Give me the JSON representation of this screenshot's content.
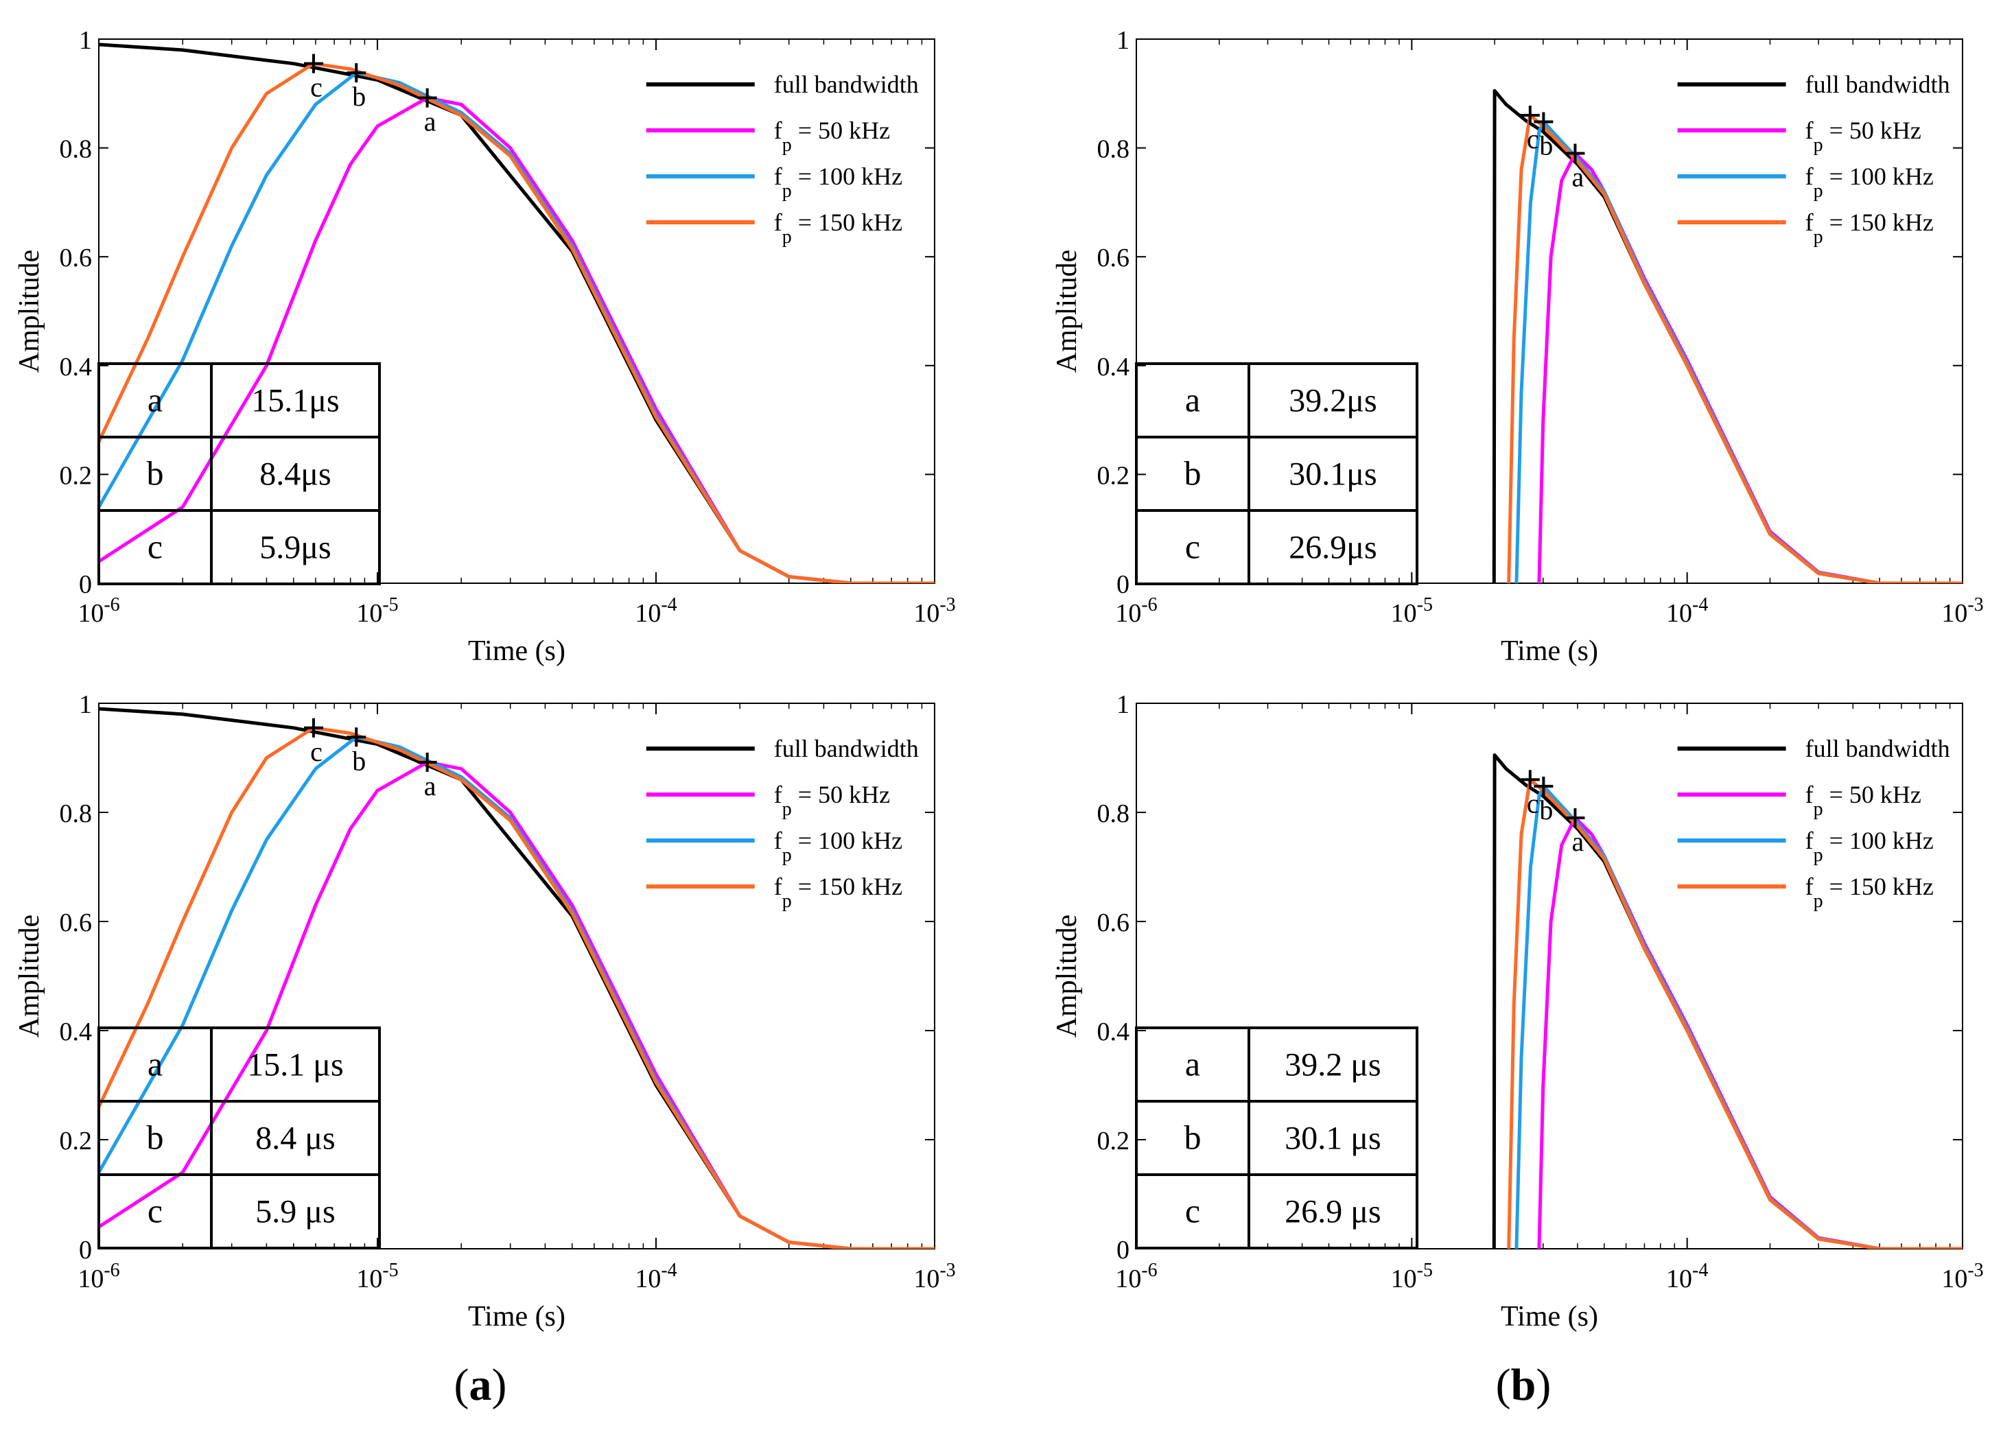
{
  "figure": {
    "panel_labels": [
      {
        "letter": "a"
      },
      {
        "letter": "b"
      }
    ],
    "legend_entries": [
      {
        "label": "full bandwidth",
        "color": "#000000"
      },
      {
        "base": "f",
        "sub": "p",
        "rest": " = 50 kHz",
        "color": "#ff00ff"
      },
      {
        "base": "f",
        "sub": "p",
        "rest": " = 100 kHz",
        "color": "#1f9eea"
      },
      {
        "base": "f",
        "sub": "p",
        "rest": " = 150 kHz",
        "color": "#ff6a26"
      }
    ],
    "y_ticks": [
      "0",
      "0.2",
      "0.4",
      "0.6",
      "0.8",
      "1"
    ],
    "x_tick_mantissa": "10",
    "x_tick_exponents": [
      "-6",
      "-5",
      "-4",
      "-3"
    ]
  },
  "chart_data": [
    {
      "id": "a-top",
      "type": "line",
      "title": "",
      "xlabel": "Time (s)",
      "ylabel": "Amplitude",
      "xscale": "log",
      "xlim": [
        1e-06,
        0.001
      ],
      "ylim": [
        0,
        1
      ],
      "legend_position": "top-right",
      "grid": false,
      "series": [
        {
          "name": "full bandwidth",
          "color": "#000000",
          "x": [
            1e-06,
            2e-06,
            5e-06,
            1e-05,
            2e-05,
            5e-05,
            0.0001,
            0.0002,
            0.0003,
            0.0005,
            0.001
          ],
          "y": [
            0.99,
            0.98,
            0.955,
            0.925,
            0.86,
            0.61,
            0.3,
            0.06,
            0.012,
            0,
            0
          ]
        },
        {
          "name": "f_p = 50 kHz",
          "color": "#ff00ff",
          "x": [
            1e-06,
            2e-06,
            4e-06,
            6e-06,
            8e-06,
            1e-05,
            1.51e-05,
            2e-05,
            3e-05,
            5e-05,
            0.0001,
            0.0002,
            0.0003,
            0.0005,
            0.001
          ],
          "y": [
            0.04,
            0.14,
            0.4,
            0.63,
            0.77,
            0.84,
            0.892,
            0.88,
            0.8,
            0.63,
            0.32,
            0.06,
            0.012,
            0,
            0
          ]
        },
        {
          "name": "f_p = 100 kHz",
          "color": "#1f9eea",
          "x": [
            1e-06,
            2e-06,
            3e-06,
            4e-06,
            6e-06,
            8.4e-06,
            1.2e-05,
            2e-05,
            3e-05,
            5e-05,
            0.0001,
            0.0002,
            0.0003,
            0.0005,
            0.001
          ],
          "y": [
            0.14,
            0.41,
            0.62,
            0.75,
            0.88,
            0.938,
            0.92,
            0.865,
            0.79,
            0.62,
            0.31,
            0.06,
            0.012,
            0,
            0
          ]
        },
        {
          "name": "f_p = 150 kHz",
          "color": "#ff6a26",
          "x": [
            1e-06,
            1.5e-06,
            2e-06,
            3e-06,
            4e-06,
            5.9e-06,
            8e-06,
            1.2e-05,
            2e-05,
            3e-05,
            5e-05,
            0.0001,
            0.0002,
            0.0003,
            0.0005,
            0.001
          ],
          "y": [
            0.26,
            0.45,
            0.6,
            0.8,
            0.9,
            0.955,
            0.945,
            0.915,
            0.86,
            0.785,
            0.615,
            0.305,
            0.06,
            0.012,
            0,
            0
          ]
        }
      ],
      "markers": [
        {
          "label": "a",
          "x": 1.51e-05,
          "y": 0.892
        },
        {
          "label": "b",
          "x": 8.4e-06,
          "y": 0.938
        },
        {
          "label": "c",
          "x": 5.9e-06,
          "y": 0.955
        }
      ],
      "table": [
        {
          "key": "a",
          "value": "15.1μs"
        },
        {
          "key": "b",
          "value": "8.4μs"
        },
        {
          "key": "c",
          "value": "5.9μs"
        }
      ]
    },
    {
      "id": "b-top",
      "type": "line",
      "title": "",
      "xlabel": "Time (s)",
      "ylabel": "Amplitude",
      "xscale": "log",
      "xlim": [
        1e-06,
        0.001
      ],
      "ylim": [
        0,
        1
      ],
      "legend_position": "top-right",
      "grid": false,
      "series": [
        {
          "name": "full bandwidth",
          "color": "#000000",
          "x": [
            1.99e-05,
            2e-05,
            2.2e-05,
            2.6e-05,
            3e-05,
            4e-05,
            5e-05,
            7e-05,
            0.0001,
            0.0002,
            0.0003,
            0.0005,
            0.001
          ],
          "y": [
            0,
            0.905,
            0.88,
            0.85,
            0.83,
            0.77,
            0.71,
            0.55,
            0.4,
            0.09,
            0.018,
            0,
            0
          ]
        },
        {
          "name": "f_p = 50 kHz",
          "color": "#ff00ff",
          "x": [
            2.9e-05,
            3e-05,
            3.2e-05,
            3.5e-05,
            3.92e-05,
            4.5e-05,
            5e-05,
            7e-05,
            0.0001,
            0.0002,
            0.0003,
            0.0005,
            0.001
          ],
          "y": [
            0,
            0.3,
            0.6,
            0.74,
            0.79,
            0.76,
            0.72,
            0.56,
            0.41,
            0.095,
            0.02,
            0,
            0
          ]
        },
        {
          "name": "f_p = 100 kHz",
          "color": "#1f9eea",
          "x": [
            2.4e-05,
            2.5e-05,
            2.7e-05,
            2.9e-05,
            3.01e-05,
            4e-05,
            5e-05,
            7e-05,
            0.0001,
            0.0002,
            0.0003,
            0.0005,
            0.001
          ],
          "y": [
            0,
            0.35,
            0.7,
            0.83,
            0.848,
            0.78,
            0.72,
            0.555,
            0.405,
            0.092,
            0.019,
            0,
            0
          ]
        },
        {
          "name": "f_p = 150 kHz",
          "color": "#ff6a26",
          "x": [
            2.25e-05,
            2.35e-05,
            2.5e-05,
            2.69e-05,
            3e-05,
            4e-05,
            5e-05,
            7e-05,
            0.0001,
            0.0002,
            0.0003,
            0.0005,
            0.001
          ],
          "y": [
            0,
            0.45,
            0.76,
            0.86,
            0.84,
            0.775,
            0.715,
            0.55,
            0.4,
            0.09,
            0.018,
            0,
            0
          ]
        }
      ],
      "markers": [
        {
          "label": "a",
          "x": 3.92e-05,
          "y": 0.79
        },
        {
          "label": "b",
          "x": 3.01e-05,
          "y": 0.848
        },
        {
          "label": "c",
          "x": 2.69e-05,
          "y": 0.86
        }
      ],
      "table": [
        {
          "key": "a",
          "value": "39.2μs"
        },
        {
          "key": "b",
          "value": "30.1μs"
        },
        {
          "key": "c",
          "value": "26.9μs"
        }
      ]
    },
    {
      "id": "a-bottom",
      "type": "line",
      "title": "",
      "xlabel": "Time (s)",
      "ylabel": "Amplitude",
      "xscale": "log",
      "xlim": [
        1e-06,
        0.001
      ],
      "ylim": [
        0,
        1
      ],
      "legend_position": "top-right",
      "grid": false,
      "series": [
        {
          "name": "full bandwidth",
          "color": "#000000",
          "x": [
            1e-06,
            2e-06,
            5e-06,
            1e-05,
            2e-05,
            5e-05,
            0.0001,
            0.0002,
            0.0003,
            0.0005,
            0.001
          ],
          "y": [
            0.99,
            0.98,
            0.955,
            0.925,
            0.86,
            0.61,
            0.3,
            0.06,
            0.012,
            0,
            0
          ]
        },
        {
          "name": "f_p = 50 kHz",
          "color": "#ff00ff",
          "x": [
            1e-06,
            2e-06,
            4e-06,
            6e-06,
            8e-06,
            1e-05,
            1.51e-05,
            2e-05,
            3e-05,
            5e-05,
            0.0001,
            0.0002,
            0.0003,
            0.0005,
            0.001
          ],
          "y": [
            0.04,
            0.14,
            0.4,
            0.63,
            0.77,
            0.84,
            0.892,
            0.88,
            0.8,
            0.63,
            0.32,
            0.06,
            0.012,
            0,
            0
          ]
        },
        {
          "name": "f_p = 100 kHz",
          "color": "#1f9eea",
          "x": [
            1e-06,
            2e-06,
            3e-06,
            4e-06,
            6e-06,
            8.4e-06,
            1.2e-05,
            2e-05,
            3e-05,
            5e-05,
            0.0001,
            0.0002,
            0.0003,
            0.0005,
            0.001
          ],
          "y": [
            0.14,
            0.41,
            0.62,
            0.75,
            0.88,
            0.938,
            0.92,
            0.865,
            0.79,
            0.62,
            0.31,
            0.06,
            0.012,
            0,
            0
          ]
        },
        {
          "name": "f_p = 150 kHz",
          "color": "#ff6a26",
          "x": [
            1e-06,
            1.5e-06,
            2e-06,
            3e-06,
            4e-06,
            5.9e-06,
            8e-06,
            1.2e-05,
            2e-05,
            3e-05,
            5e-05,
            0.0001,
            0.0002,
            0.0003,
            0.0005,
            0.001
          ],
          "y": [
            0.26,
            0.45,
            0.6,
            0.8,
            0.9,
            0.955,
            0.945,
            0.915,
            0.86,
            0.785,
            0.615,
            0.305,
            0.06,
            0.012,
            0,
            0
          ]
        }
      ],
      "markers": [
        {
          "label": "a",
          "x": 1.51e-05,
          "y": 0.892
        },
        {
          "label": "b",
          "x": 8.4e-06,
          "y": 0.938
        },
        {
          "label": "c",
          "x": 5.9e-06,
          "y": 0.955
        }
      ],
      "table": [
        {
          "key": "a",
          "value": "15.1 μs"
        },
        {
          "key": "b",
          "value": "8.4 μs"
        },
        {
          "key": "c",
          "value": "5.9 μs"
        }
      ]
    },
    {
      "id": "b-bottom",
      "type": "line",
      "title": "",
      "xlabel": "Time (s)",
      "ylabel": "Amplitude",
      "xscale": "log",
      "xlim": [
        1e-06,
        0.001
      ],
      "ylim": [
        0,
        1
      ],
      "legend_position": "top-right",
      "grid": false,
      "series": [
        {
          "name": "full bandwidth",
          "color": "#000000",
          "x": [
            1.99e-05,
            2e-05,
            2.2e-05,
            2.6e-05,
            3e-05,
            4e-05,
            5e-05,
            7e-05,
            0.0001,
            0.0002,
            0.0003,
            0.0005,
            0.001
          ],
          "y": [
            0,
            0.905,
            0.88,
            0.85,
            0.83,
            0.77,
            0.71,
            0.55,
            0.4,
            0.09,
            0.018,
            0,
            0
          ]
        },
        {
          "name": "f_p = 50 kHz",
          "color": "#ff00ff",
          "x": [
            2.9e-05,
            3e-05,
            3.2e-05,
            3.5e-05,
            3.92e-05,
            4.5e-05,
            5e-05,
            7e-05,
            0.0001,
            0.0002,
            0.0003,
            0.0005,
            0.001
          ],
          "y": [
            0,
            0.3,
            0.6,
            0.74,
            0.79,
            0.76,
            0.72,
            0.56,
            0.41,
            0.095,
            0.02,
            0,
            0
          ]
        },
        {
          "name": "f_p = 100 kHz",
          "color": "#1f9eea",
          "x": [
            2.4e-05,
            2.5e-05,
            2.7e-05,
            2.9e-05,
            3.01e-05,
            4e-05,
            5e-05,
            7e-05,
            0.0001,
            0.0002,
            0.0003,
            0.0005,
            0.001
          ],
          "y": [
            0,
            0.35,
            0.7,
            0.83,
            0.848,
            0.78,
            0.72,
            0.555,
            0.405,
            0.092,
            0.019,
            0,
            0
          ]
        },
        {
          "name": "f_p = 150 kHz",
          "color": "#ff6a26",
          "x": [
            2.25e-05,
            2.35e-05,
            2.5e-05,
            2.69e-05,
            3e-05,
            4e-05,
            5e-05,
            7e-05,
            0.0001,
            0.0002,
            0.0003,
            0.0005,
            0.001
          ],
          "y": [
            0,
            0.45,
            0.76,
            0.86,
            0.84,
            0.775,
            0.715,
            0.55,
            0.4,
            0.09,
            0.018,
            0,
            0
          ]
        }
      ],
      "markers": [
        {
          "label": "a",
          "x": 3.92e-05,
          "y": 0.79
        },
        {
          "label": "b",
          "x": 3.01e-05,
          "y": 0.848
        },
        {
          "label": "c",
          "x": 2.69e-05,
          "y": 0.86
        }
      ],
      "table": [
        {
          "key": "a",
          "value": "39.2 μs"
        },
        {
          "key": "b",
          "value": "30.1 μs"
        },
        {
          "key": "c",
          "value": "26.9 μs"
        }
      ]
    }
  ]
}
